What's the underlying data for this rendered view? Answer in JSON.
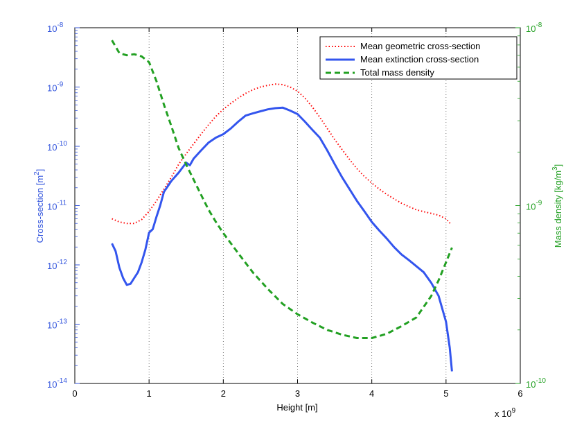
{
  "chart_data": {
    "type": "line",
    "title": "",
    "xlabel": "Height [m]",
    "x_multiplier_label": "x 10",
    "x_multiplier_exponent": "9",
    "xlim": [
      0,
      6
    ],
    "x_ticks": [
      "0",
      "1",
      "2",
      "3",
      "4",
      "5",
      "6"
    ],
    "x_grid": "vertical dotted",
    "left_axis": {
      "label_text": "Cross-section [m",
      "label_sup": "2",
      "label_close": "]",
      "scale": "log",
      "ylim": [
        1e-14,
        1e-08
      ],
      "tick_base": "10",
      "tick_exponents": [
        "-14",
        "-13",
        "-12",
        "-11",
        "-10",
        "-9",
        "-8"
      ],
      "color": "#3355dd"
    },
    "right_axis": {
      "label_text": "Mass density [kg/m",
      "label_sup": "3",
      "label_close": "]",
      "scale": "log",
      "ylim": [
        1e-10,
        1e-08
      ],
      "tick_base": "10",
      "tick_exponents": [
        "-10",
        "-9",
        "-8"
      ],
      "color": "#22a022"
    },
    "legend_position": "top-right",
    "series": [
      {
        "name": "Mean geometric cross-section",
        "axis": "left",
        "style": "dotted",
        "color": "#ff0000",
        "x": [
          0.5,
          0.6,
          0.7,
          0.8,
          0.9,
          1.0,
          1.1,
          1.2,
          1.3,
          1.4,
          1.5,
          1.6,
          1.7,
          1.8,
          1.9,
          2.0,
          2.1,
          2.2,
          2.3,
          2.4,
          2.5,
          2.6,
          2.7,
          2.8,
          2.9,
          3.0,
          3.1,
          3.2,
          3.3,
          3.4,
          3.5,
          3.6,
          3.7,
          3.8,
          3.9,
          4.0,
          4.1,
          4.2,
          4.3,
          4.4,
          4.5,
          4.6,
          4.7,
          4.8,
          4.9,
          5.0,
          5.07
        ],
        "y": [
          6e-12,
          5.3e-12,
          5e-12,
          5e-12,
          5.8e-12,
          8e-12,
          1.2e-11,
          1.9e-11,
          3e-11,
          5e-11,
          7.5e-11,
          1.1e-10,
          1.6e-10,
          2.3e-10,
          3.2e-10,
          4.2e-10,
          5.3e-10,
          6.5e-10,
          7.8e-10,
          9e-10,
          1e-09,
          1.07e-09,
          1.12e-09,
          1.1e-09,
          1e-09,
          8.5e-10,
          6.5e-10,
          4.6e-10,
          3.1e-10,
          2e-10,
          1.3e-10,
          8.8e-11,
          6e-11,
          4.2e-11,
          3.1e-11,
          2.4e-11,
          1.9e-11,
          1.55e-11,
          1.3e-11,
          1.1e-11,
          9.6e-12,
          8.5e-12,
          7.9e-12,
          7.4e-12,
          6.9e-12,
          6e-12,
          4.8e-12
        ]
      },
      {
        "name": "Mean extinction cross-section",
        "axis": "left",
        "style": "solid",
        "color": "#3355ee",
        "x": [
          0.5,
          0.55,
          0.6,
          0.65,
          0.7,
          0.75,
          0.8,
          0.85,
          0.9,
          0.95,
          1.0,
          1.05,
          1.1,
          1.15,
          1.2,
          1.3,
          1.4,
          1.5,
          1.55,
          1.6,
          1.7,
          1.8,
          1.9,
          2.0,
          2.1,
          2.2,
          2.3,
          2.4,
          2.5,
          2.6,
          2.7,
          2.8,
          2.9,
          3.0,
          3.1,
          3.2,
          3.3,
          3.4,
          3.5,
          3.6,
          3.7,
          3.8,
          3.9,
          4.0,
          4.1,
          4.2,
          4.3,
          4.4,
          4.5,
          4.6,
          4.7,
          4.8,
          4.9,
          5.0,
          5.05,
          5.08
        ],
        "y": [
          2.3e-12,
          1.7e-12,
          9e-13,
          6e-13,
          4.6e-13,
          4.8e-13,
          6e-13,
          7.5e-13,
          1.1e-12,
          1.8e-12,
          3.5e-12,
          4e-12,
          6.5e-12,
          1e-11,
          1.7e-11,
          2.6e-11,
          3.6e-11,
          5.3e-11,
          4.8e-11,
          6.2e-11,
          8.5e-11,
          1.15e-10,
          1.4e-10,
          1.6e-10,
          2e-10,
          2.6e-10,
          3.3e-10,
          3.6e-10,
          3.9e-10,
          4.2e-10,
          4.4e-10,
          4.5e-10,
          4e-10,
          3.5e-10,
          2.6e-10,
          1.9e-10,
          1.4e-10,
          8.5e-11,
          5e-11,
          3e-11,
          1.9e-11,
          1.2e-11,
          8e-12,
          5.3e-12,
          3.8e-12,
          2.8e-12,
          2e-12,
          1.5e-12,
          1.2e-12,
          9.5e-13,
          7.5e-13,
          5e-13,
          3e-13,
          1.1e-13,
          4e-14,
          1.6e-14
        ]
      },
      {
        "name": "Total mass density",
        "axis": "right",
        "style": "dashed",
        "color": "#22a022",
        "x": [
          0.5,
          0.6,
          0.7,
          0.8,
          0.9,
          1.0,
          1.1,
          1.2,
          1.3,
          1.4,
          1.5,
          1.6,
          1.7,
          1.8,
          1.9,
          2.0,
          2.2,
          2.4,
          2.6,
          2.8,
          3.0,
          3.2,
          3.4,
          3.6,
          3.8,
          4.0,
          4.2,
          4.4,
          4.6,
          4.8,
          4.9,
          5.0,
          5.08
        ],
        "y": [
          8.5e-09,
          7.2e-09,
          7e-09,
          7.1e-09,
          6.9e-09,
          6.4e-09,
          5e-09,
          3.7e-09,
          2.8e-09,
          2.1e-09,
          1.7e-09,
          1.4e-09,
          1.15e-09,
          9.5e-10,
          8.1e-10,
          7e-10,
          5.4e-10,
          4.2e-10,
          3.4e-10,
          2.8e-10,
          2.45e-10,
          2.2e-10,
          2e-10,
          1.88e-10,
          1.8e-10,
          1.8e-10,
          1.9e-10,
          2.1e-10,
          2.35e-10,
          3.1e-10,
          3.8e-10,
          4.8e-10,
          5.8e-10
        ]
      }
    ]
  }
}
